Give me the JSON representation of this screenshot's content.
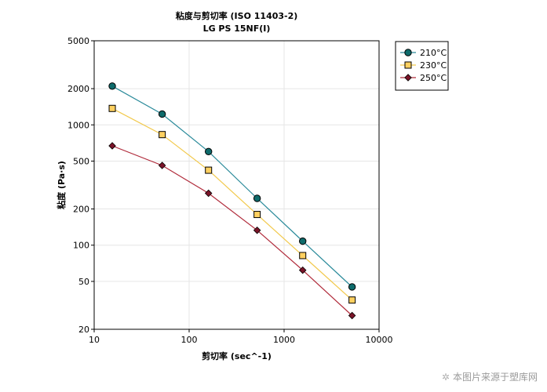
{
  "chart_data": {
    "type": "line",
    "title": "粘度与剪切率 (ISO 11403-2)",
    "subtitle": "LG PS 15NF(I)",
    "xlabel": "剪切率 (sec^-1)",
    "ylabel": "粘度 (Pa·s)",
    "xscale": "log",
    "yscale": "log",
    "xlim": [
      10,
      10000
    ],
    "ylim": [
      20,
      5000
    ],
    "x_ticks": [
      10,
      100,
      1000,
      10000
    ],
    "x_tick_labels": [
      "10",
      "100",
      "1000",
      "10000"
    ],
    "y_ticks": [
      20,
      50,
      100,
      200,
      500,
      1000,
      2000,
      5000
    ],
    "y_tick_labels": [
      "20",
      "50",
      "100",
      "200",
      "500",
      "1000",
      "2000",
      "5000"
    ],
    "grid": true,
    "legend_position": "outside-top-right",
    "series": [
      {
        "name": "210°C",
        "color": "#2a8a9a",
        "marker": "circle",
        "marker_fill": "#0e6b6b",
        "x": [
          15.5,
          52,
          160,
          520,
          1570,
          5200
        ],
        "values": [
          2100,
          1230,
          600,
          245,
          108,
          45
        ]
      },
      {
        "name": "230°C",
        "color": "#f2c94c",
        "marker": "square",
        "marker_fill": "#ffd060",
        "x": [
          15.5,
          52,
          160,
          520,
          1570,
          5200
        ],
        "values": [
          1370,
          830,
          420,
          180,
          82,
          35
        ]
      },
      {
        "name": "250°C",
        "color": "#b02a3a",
        "marker": "diamond",
        "marker_fill": "#7a1428",
        "x": [
          15.5,
          52,
          160,
          520,
          1570,
          5200
        ],
        "values": [
          670,
          460,
          270,
          133,
          62,
          26
        ]
      }
    ]
  },
  "watermark": {
    "symbol": "✲",
    "text": "本图片来源于塑库网"
  }
}
